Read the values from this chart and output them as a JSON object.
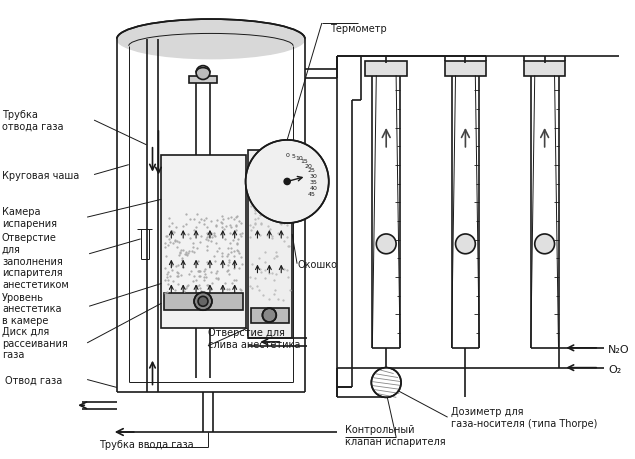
{
  "bg_color": "#ffffff",
  "line_color": "#1a1a1a",
  "lw": 1.2,
  "lw_thin": 0.7,
  "lw_med": 1.0,
  "labels": {
    "thermometer": "Термометр",
    "tube_out": "Трубка\nотвода газа",
    "round_cup": "Круговая чаша",
    "chamber": "Камера\nиспарения",
    "fill_hole": "Отверстие\nдля\nзаполнения\nиспарителя\nанестетиком",
    "level": "Уровень\nанестетика\nв камере",
    "disc": "Диск для\nрассеивания\nгаза",
    "outlet": "Отвод газа",
    "inlet": "Трубка ввода газа",
    "drain_hole": "Отверстие для\nслива анестетика",
    "window": "Окошко",
    "dosimeter": "Дозиметр для\nгаза-носителя (типа Thorpe)",
    "control_valve": "Контрольный\nклапан испарителя",
    "n2o": "N₂O",
    "o2": "O₂"
  }
}
